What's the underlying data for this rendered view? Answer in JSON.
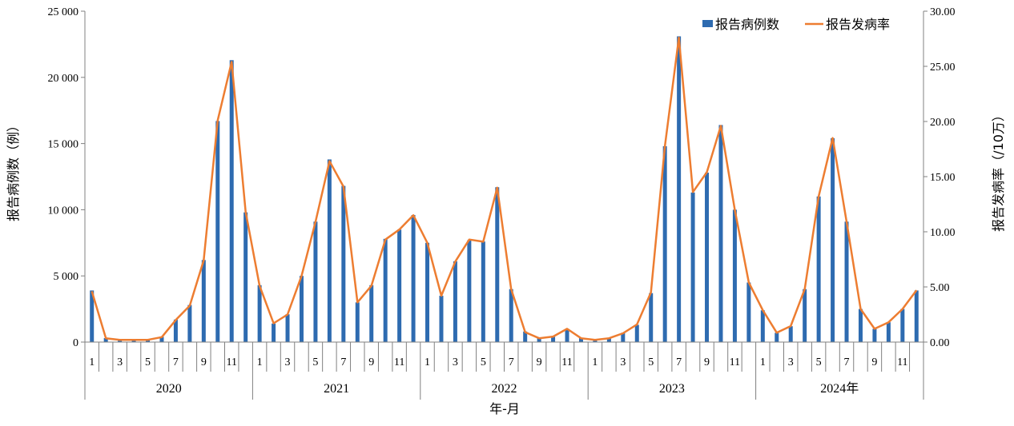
{
  "chart_data": {
    "type": "bar+line",
    "title": "",
    "xlabel": "年-月",
    "ylabel_left": "报告病例数（例）",
    "ylabel_right": "报告发病率（/10万）",
    "ylim_left": [
      0,
      25000
    ],
    "ylim_right": [
      0,
      30
    ],
    "left_ticks": [
      "0",
      "5 000",
      "10 000",
      "15 000",
      "20 000",
      "25 000"
    ],
    "right_ticks": [
      "0.00",
      "5.00",
      "10.00",
      "15.00",
      "20.00",
      "25.00",
      "30.00"
    ],
    "years": [
      "2020",
      "2021",
      "2022",
      "2023",
      "2024年"
    ],
    "month_tick_labels": [
      "1",
      "",
      "3",
      "",
      "5",
      "",
      "7",
      "",
      "9",
      "",
      "11",
      ""
    ],
    "legend": {
      "position": "top-right",
      "bar_label": "报告病例数",
      "line_label": "报告发病率"
    },
    "colors": {
      "bar": "#2e6bb0",
      "line": "#ed7d31",
      "axis": "#808080"
    },
    "series": [
      {
        "name": "报告病例数",
        "kind": "bar",
        "axis": "left",
        "values": [
          3900,
          300,
          200,
          200,
          200,
          400,
          1700,
          2800,
          6200,
          16700,
          21300,
          9800,
          4300,
          1400,
          2100,
          5000,
          9100,
          13800,
          11800,
          3000,
          4300,
          7800,
          8500,
          9600,
          7500,
          3500,
          6100,
          7700,
          7600,
          11700,
          4000,
          800,
          300,
          400,
          1000,
          300,
          200,
          300,
          700,
          1300,
          3700,
          14800,
          23100,
          11300,
          12800,
          16400,
          10000,
          4500,
          2400,
          700,
          1200,
          4000,
          11000,
          15400,
          9100,
          2500,
          1000,
          1500,
          2500,
          3900
        ]
      },
      {
        "name": "报告发病率",
        "kind": "line",
        "axis": "right",
        "values": [
          4.6,
          0.35,
          0.2,
          0.2,
          0.2,
          0.45,
          2.0,
          3.3,
          7.4,
          20.1,
          25.4,
          11.8,
          5.1,
          1.7,
          2.5,
          6.0,
          10.9,
          16.4,
          14.1,
          3.6,
          5.1,
          9.3,
          10.2,
          11.5,
          9.0,
          4.2,
          7.3,
          9.3,
          9.1,
          14.0,
          4.8,
          0.9,
          0.35,
          0.5,
          1.2,
          0.35,
          0.2,
          0.35,
          0.8,
          1.6,
          4.5,
          17.8,
          27.6,
          13.6,
          15.4,
          19.6,
          12.0,
          5.4,
          2.9,
          0.85,
          1.45,
          4.8,
          13.2,
          18.5,
          10.9,
          3.0,
          1.2,
          1.8,
          3.0,
          4.7
        ]
      }
    ]
  }
}
